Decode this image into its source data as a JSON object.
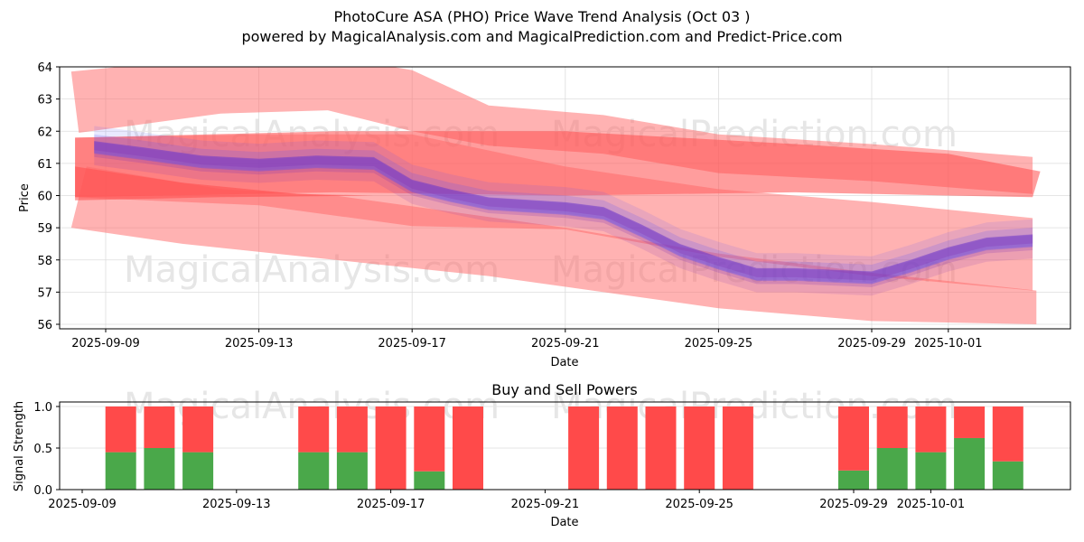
{
  "header": {
    "title": "PhotoCure ASA (PHO) Price Wave Trend Analysis (Oct 03 )",
    "subtitle": "powered by MagicalAnalysis.com and MagicalPrediction.com and Predict-Price.com"
  },
  "watermarks": [
    "MagicalAnalysis.com",
    "MagicalPrediction.com"
  ],
  "colors": {
    "band_light_red": "#ff6666",
    "band_red": "#ff4d4d",
    "wave_blue": "#4d4dff",
    "wave_purple": "#8033b3",
    "buy_green": "#4aa84a",
    "sell_red": "#ff4a4a",
    "grid": "#dddddd",
    "watermark": "#e6e6e6"
  },
  "chart_data": [
    {
      "type": "area",
      "name": "price-wave",
      "title": "",
      "xlabel": "Date",
      "ylabel": "Price",
      "x_origin": "2025-09-09",
      "xlim_days": [
        -1.2,
        24.4
      ],
      "ylim": [
        55.85,
        64.0
      ],
      "yticks": [
        56,
        57,
        58,
        59,
        60,
        61,
        62,
        63,
        64
      ],
      "xticks": [
        {
          "day": 0,
          "label": "2025-09-09"
        },
        {
          "day": 4,
          "label": "2025-09-13"
        },
        {
          "day": 8,
          "label": "2025-09-17"
        },
        {
          "day": 12,
          "label": "2025-09-21"
        },
        {
          "day": 16,
          "label": "2025-09-25"
        },
        {
          "day": 20,
          "label": "2025-09-29"
        },
        {
          "day": 22,
          "label": "2025-10-01"
        }
      ],
      "grid": true,
      "bands": [
        {
          "name": "upper-resistance-band",
          "shade": "light",
          "upper": [
            [
              -0.9,
              63.85
            ],
            [
              2,
              64.2
            ],
            [
              6.5,
              64.2
            ],
            [
              8,
              63.9
            ],
            [
              10,
              62.8
            ],
            [
              13,
              62.5
            ],
            [
              16,
              61.9
            ],
            [
              20,
              61.6
            ],
            [
              24.2,
              61.2
            ]
          ],
          "lower": [
            [
              -0.7,
              61.95
            ],
            [
              3,
              62.55
            ],
            [
              5.8,
              62.65
            ],
            [
              8,
              62.0
            ],
            [
              10,
              61.55
            ],
            [
              13,
              61.3
            ],
            [
              16,
              60.7
            ],
            [
              20,
              60.45
            ],
            [
              24.2,
              60.05
            ]
          ]
        },
        {
          "name": "upper-core-band",
          "shade": "dark",
          "upper": [
            [
              -0.8,
              61.8
            ],
            [
              6,
              62.0
            ],
            [
              12,
              62.0
            ],
            [
              18,
              61.6
            ],
            [
              22,
              61.3
            ],
            [
              24.4,
              60.75
            ]
          ],
          "lower": [
            [
              -0.8,
              59.95
            ],
            [
              6,
              60.1
            ],
            [
              12,
              60.0
            ],
            [
              18,
              60.1
            ],
            [
              22,
              60.0
            ],
            [
              24.2,
              59.95
            ]
          ]
        },
        {
          "name": "middle-light-band",
          "shade": "light",
          "upper": [
            [
              -0.8,
              61.8
            ],
            [
              4,
              61.9
            ],
            [
              8,
              61.9
            ],
            [
              12,
              60.9
            ],
            [
              16,
              60.2
            ],
            [
              20,
              59.8
            ],
            [
              24.2,
              59.3
            ]
          ],
          "lower": [
            [
              -0.8,
              59.95
            ],
            [
              4,
              59.7
            ],
            [
              8,
              59.05
            ],
            [
              12,
              58.95
            ],
            [
              16,
              58.1
            ],
            [
              20,
              57.5
            ],
            [
              24.2,
              57.05
            ]
          ]
        },
        {
          "name": "lower-support-band",
          "shade": "light",
          "upper": [
            [
              -0.9,
              59.0
            ],
            [
              2,
              58.5
            ],
            [
              6,
              58.0
            ],
            [
              10,
              57.5
            ],
            [
              13,
              57.0
            ],
            [
              16,
              56.5
            ],
            [
              20,
              56.1
            ],
            [
              24.3,
              56.0
            ]
          ],
          "lower": [
            [
              -0.9,
              59.0
            ],
            [
              -0.5,
              60.9
            ],
            [
              3,
              60.2
            ],
            [
              6,
              60.0
            ],
            [
              9,
              59.5
            ],
            [
              12,
              59.0
            ],
            [
              16,
              58.2
            ],
            [
              20,
              57.6
            ],
            [
              24.3,
              57.05
            ]
          ]
        },
        {
          "name": "lower-core-wedge",
          "shade": "dark",
          "upper": [
            [
              -0.8,
              60.9
            ],
            [
              2,
              60.4
            ],
            [
              5,
              60.05
            ],
            [
              7,
              60.0
            ]
          ],
          "lower": [
            [
              -0.8,
              59.85
            ],
            [
              3,
              59.95
            ],
            [
              7,
              60.0
            ]
          ]
        }
      ],
      "wave_center": [
        {
          "day": -0.3,
          "price": 61.5
        },
        {
          "day": 1,
          "price": 61.3
        },
        {
          "day": 2.5,
          "price": 61.05
        },
        {
          "day": 4,
          "price": 60.95
        },
        {
          "day": 5.5,
          "price": 61.05
        },
        {
          "day": 7,
          "price": 61.0
        },
        {
          "day": 8,
          "price": 60.3
        },
        {
          "day": 9,
          "price": 60.0
        },
        {
          "day": 10,
          "price": 59.75
        },
        {
          "day": 12,
          "price": 59.6
        },
        {
          "day": 13,
          "price": 59.45
        },
        {
          "day": 14,
          "price": 58.9
        },
        {
          "day": 15,
          "price": 58.3
        },
        {
          "day": 16,
          "price": 57.9
        },
        {
          "day": 17,
          "price": 57.55
        },
        {
          "day": 18,
          "price": 57.55
        },
        {
          "day": 20,
          "price": 57.45
        },
        {
          "day": 21,
          "price": 57.8
        },
        {
          "day": 22,
          "price": 58.2
        },
        {
          "day": 23,
          "price": 58.5
        },
        {
          "day": 24.2,
          "price": 58.6
        }
      ],
      "wave_spread": 0.55
    },
    {
      "type": "bar",
      "name": "buy-sell-powers",
      "title": "Buy and Sell Powers",
      "xlabel": "Date",
      "ylabel": "Signal Strength",
      "x_origin": "2025-09-09",
      "xlim_days": [
        -0.6,
        25.2
      ],
      "ylim": [
        0,
        1.05
      ],
      "yticks": [
        {
          "v": 0,
          "label": "0.0"
        },
        {
          "v": 0.5,
          "label": "0.5"
        },
        {
          "v": 1.0,
          "label": "1.0"
        }
      ],
      "xticks": [
        {
          "day": 0,
          "label": "2025-09-09"
        },
        {
          "day": 4,
          "label": "2025-09-13"
        },
        {
          "day": 8,
          "label": "2025-09-17"
        },
        {
          "day": 12,
          "label": "2025-09-21"
        },
        {
          "day": 16,
          "label": "2025-09-25"
        },
        {
          "day": 20,
          "label": "2025-09-29"
        },
        {
          "day": 22,
          "label": "2025-10-01"
        }
      ],
      "grid": true,
      "categories": [
        "2025-09-10",
        "2025-09-11",
        "2025-09-12",
        "2025-09-15",
        "2025-09-16",
        "2025-09-17",
        "2025-09-18",
        "2025-09-19",
        "2025-09-22",
        "2025-09-23",
        "2025-09-24",
        "2025-09-25",
        "2025-09-26",
        "2025-09-29",
        "2025-09-30",
        "2025-10-01",
        "2025-10-02",
        "2025-10-03"
      ],
      "days": [
        1,
        2,
        3,
        6,
        7,
        8,
        9,
        10,
        13,
        14,
        15,
        16,
        17,
        20,
        21,
        22,
        23,
        24
      ],
      "series": [
        {
          "name": "Buy",
          "values": [
            0.45,
            0.5,
            0.45,
            0.45,
            0.45,
            0.0,
            0.22,
            0.0,
            0.0,
            0.0,
            0.0,
            0.0,
            0.0,
            0.23,
            0.5,
            0.45,
            0.62,
            0.34
          ]
        },
        {
          "name": "Sell",
          "values": [
            0.55,
            0.5,
            0.55,
            0.55,
            0.55,
            1.0,
            0.78,
            1.0,
            1.0,
            1.0,
            1.0,
            1.0,
            1.0,
            0.77,
            0.5,
            0.55,
            0.38,
            0.66
          ]
        }
      ]
    }
  ]
}
